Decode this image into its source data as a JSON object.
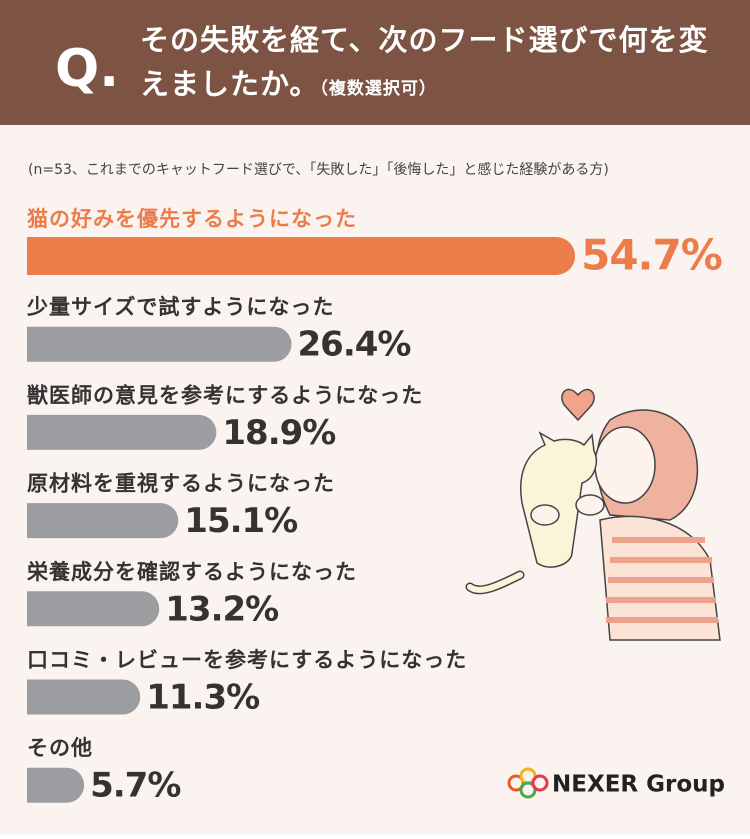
{
  "chart_data": {
    "type": "bar",
    "question_mark": "Q.",
    "title": "その失敗を経て、次のフード選びで何を変えましたか。",
    "subtitle": "（複数選択可）",
    "note": "(n=53、これまでのキャットフード選びで、「失敗した」「後悔した」と感じた経験がある方)",
    "categories": [
      "猫の好みを優先するようになった",
      "少量サイズで試すようになった",
      "獣医師の意見を参考にするようになった",
      "原材料を重視するようになった",
      "栄養成分を確認するようになった",
      "口コミ・レビューを参考にするようになった",
      "その他"
    ],
    "values": [
      54.7,
      26.4,
      18.9,
      15.1,
      13.2,
      11.3,
      5.7
    ],
    "value_labels": [
      "54.7%",
      "26.4%",
      "18.9%",
      "15.1%",
      "13.2%",
      "11.3%",
      "5.7%"
    ],
    "colors": [
      "#ec7d4b",
      "#9c9da1",
      "#9c9da1",
      "#9c9da1",
      "#9c9da1",
      "#9c9da1",
      "#9c9da1"
    ],
    "logo": "NEXER Group"
  }
}
